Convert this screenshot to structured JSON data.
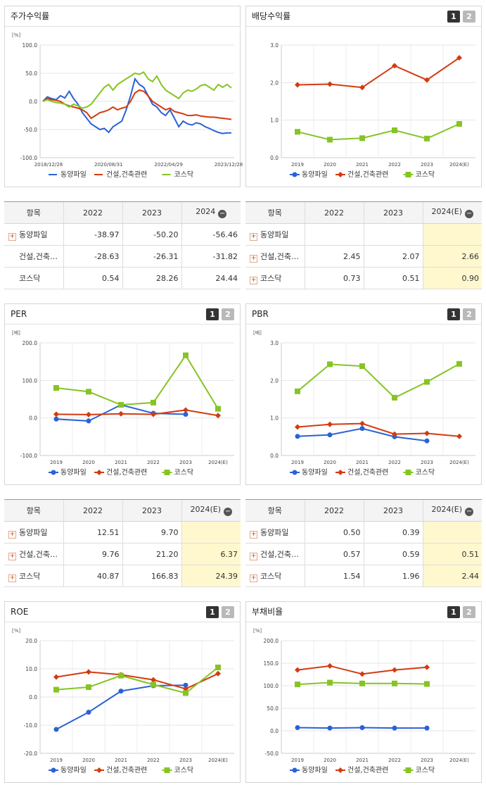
{
  "colors": {
    "series1": "#2a62d6",
    "series2": "#d33b10",
    "series3": "#86c424"
  },
  "legend": [
    "동양파일",
    "건설,건축관련",
    "코스닥"
  ],
  "panels": {
    "stock_return": {
      "title": "주가수익률",
      "unit": "[%]"
    },
    "dividend": {
      "title": "배당수익률",
      "unit": ""
    },
    "per": {
      "title": "PER",
      "unit": "[배]"
    },
    "pbr": {
      "title": "PBR",
      "unit": "[배]"
    },
    "roe": {
      "title": "ROE",
      "unit": "[%]"
    },
    "debt": {
      "title": "부채비율",
      "unit": "[%]"
    }
  },
  "buttons": {
    "b1": "1",
    "b2": "2"
  },
  "chart_data": [
    {
      "id": "stock_return",
      "type": "line",
      "title": "주가수익률",
      "ylabel": "[%]",
      "ylim": [
        -100,
        100
      ],
      "yticks": [
        "100.0",
        "50.0",
        "0.0",
        "-50.0",
        "-100.0"
      ],
      "xticks": [
        "2018/12/28",
        "2020/08/31",
        "2022/04/29",
        "2023/12/28"
      ],
      "series": [
        {
          "name": "동양파일",
          "values": [
            0,
            8,
            5,
            3,
            10,
            6,
            18,
            5,
            -5,
            -20,
            -30,
            -40,
            -45,
            -50,
            -48,
            -55,
            -45,
            -40,
            -35,
            -15,
            10,
            40,
            30,
            25,
            10,
            -5,
            -10,
            -20,
            -25,
            -15,
            -30,
            -45,
            -35,
            -40,
            -42,
            -38,
            -40,
            -45,
            -48,
            -52,
            -55,
            -57,
            -56,
            -56
          ]
        },
        {
          "name": "건설,건축관련",
          "values": [
            0,
            5,
            3,
            2,
            0,
            -5,
            -8,
            -10,
            -12,
            -15,
            -20,
            -30,
            -25,
            -20,
            -18,
            -15,
            -10,
            -15,
            -12,
            -10,
            0,
            15,
            20,
            18,
            10,
            0,
            -5,
            -10,
            -15,
            -12,
            -18,
            -20,
            -22,
            -25,
            -25,
            -24,
            -26,
            -27,
            -28,
            -28,
            -29,
            -30,
            -31,
            -32
          ]
        },
        {
          "name": "코스닥",
          "values": [
            0,
            3,
            0,
            -2,
            -3,
            -5,
            -10,
            -5,
            -8,
            -12,
            -10,
            -5,
            5,
            15,
            25,
            30,
            20,
            30,
            35,
            40,
            45,
            50,
            48,
            52,
            40,
            35,
            45,
            30,
            20,
            15,
            10,
            5,
            15,
            20,
            18,
            22,
            28,
            30,
            25,
            20,
            30,
            25,
            30,
            24
          ]
        }
      ]
    },
    {
      "id": "dividend",
      "type": "line",
      "title": "배당수익률",
      "ylim": [
        0,
        3
      ],
      "yticks": [
        "3.0",
        "2.0",
        "1.0",
        "0.0"
      ],
      "categories": [
        "2019",
        "2020",
        "2021",
        "2022",
        "2023",
        "2024(E)"
      ],
      "series": [
        {
          "name": "건설,건축관련",
          "values": [
            1.94,
            1.96,
            1.87,
            2.45,
            2.07,
            2.66
          ]
        },
        {
          "name": "코스닥",
          "values": [
            0.69,
            0.48,
            0.52,
            0.73,
            0.51,
            0.9
          ]
        }
      ]
    },
    {
      "id": "per",
      "type": "line",
      "title": "PER",
      "ylabel": "[배]",
      "ylim": [
        -100,
        200
      ],
      "yticks": [
        "200.0",
        "100.0",
        "0.0",
        "-100.0"
      ],
      "categories": [
        "2019",
        "2020",
        "2021",
        "2022",
        "2023",
        "2024(E)"
      ],
      "series": [
        {
          "name": "동양파일",
          "values": [
            -3,
            -8,
            35,
            12.51,
            9.7,
            null
          ]
        },
        {
          "name": "건설,건축관련",
          "values": [
            10,
            9,
            11,
            9.76,
            21.2,
            6.37
          ]
        },
        {
          "name": "코스닥",
          "values": [
            80,
            70,
            35,
            40.87,
            166.83,
            24.39
          ]
        }
      ]
    },
    {
      "id": "pbr",
      "type": "line",
      "title": "PBR",
      "ylabel": "[배]",
      "ylim": [
        0,
        3
      ],
      "yticks": [
        "3.0",
        "2.0",
        "1.0",
        "0.0"
      ],
      "categories": [
        "2019",
        "2020",
        "2021",
        "2022",
        "2023",
        "2024(E)"
      ],
      "series": [
        {
          "name": "동양파일",
          "values": [
            0.51,
            0.55,
            0.72,
            0.5,
            0.39,
            null
          ]
        },
        {
          "name": "건설,건축관련",
          "values": [
            0.76,
            0.83,
            0.85,
            0.57,
            0.59,
            0.51
          ]
        },
        {
          "name": "코스닥",
          "values": [
            1.71,
            2.43,
            2.38,
            1.54,
            1.96,
            2.44
          ]
        }
      ]
    },
    {
      "id": "roe",
      "type": "line",
      "title": "ROE",
      "ylabel": "[%]",
      "ylim": [
        -20,
        20
      ],
      "yticks": [
        "20.0",
        "10.0",
        "0.0",
        "-10.0",
        "-20.0"
      ],
      "categories": [
        "2019",
        "2020",
        "2021",
        "2022",
        "2023",
        "2024(E)"
      ],
      "series": [
        {
          "name": "동양파일",
          "values": [
            -11.5,
            -5.4,
            2.1,
            4.0,
            4.2,
            null
          ]
        },
        {
          "name": "건설,건축관련",
          "values": [
            7.1,
            8.9,
            7.9,
            6.1,
            2.9,
            8.3
          ]
        },
        {
          "name": "코스닥",
          "values": [
            2.6,
            3.5,
            7.6,
            4.4,
            1.4,
            10.5
          ]
        }
      ]
    },
    {
      "id": "debt",
      "type": "line",
      "title": "부채비율",
      "ylabel": "[%]",
      "ylim": [
        -50,
        200
      ],
      "yticks": [
        "200.0",
        "150.0",
        "100.0",
        "50.0",
        "0.0",
        "-50.0"
      ],
      "categories": [
        "2019",
        "2020",
        "2021",
        "2022",
        "2023",
        "2024(E)"
      ],
      "series": [
        {
          "name": "동양파일",
          "values": [
            7,
            6,
            7,
            6,
            6,
            null
          ]
        },
        {
          "name": "건설,건축관련",
          "values": [
            135,
            144,
            126,
            135,
            141,
            null
          ]
        },
        {
          "name": "코스닥",
          "values": [
            103,
            107,
            105,
            105,
            104,
            null
          ]
        }
      ]
    }
  ],
  "tables": {
    "stock_return": {
      "headers": [
        "항목",
        "2022",
        "2023",
        "2024"
      ],
      "rows": [
        {
          "name": "동양파일",
          "plus": true,
          "values": [
            "-38.97",
            "-50.20",
            "-56.46"
          ]
        },
        {
          "name": "건설,건축…",
          "plus": false,
          "values": [
            "-28.63",
            "-26.31",
            "-31.82"
          ]
        },
        {
          "name": "코스닥",
          "plus": false,
          "values": [
            "0.54",
            "28.26",
            "24.44"
          ]
        }
      ]
    },
    "dividend": {
      "headers": [
        "항목",
        "2022",
        "2023",
        "2024(E)"
      ],
      "rows": [
        {
          "name": "동양파일",
          "plus": true,
          "values": [
            "",
            "",
            ""
          ]
        },
        {
          "name": "건설,건축…",
          "plus": true,
          "values": [
            "2.45",
            "2.07",
            "2.66"
          ]
        },
        {
          "name": "코스닥",
          "plus": true,
          "values": [
            "0.73",
            "0.51",
            "0.90"
          ]
        }
      ]
    },
    "per": {
      "headers": [
        "항목",
        "2022",
        "2023",
        "2024(E)"
      ],
      "rows": [
        {
          "name": "동양파일",
          "plus": true,
          "values": [
            "12.51",
            "9.70",
            ""
          ]
        },
        {
          "name": "건설,건축…",
          "plus": true,
          "values": [
            "9.76",
            "21.20",
            "6.37"
          ]
        },
        {
          "name": "코스닥",
          "plus": true,
          "values": [
            "40.87",
            "166.83",
            "24.39"
          ]
        }
      ]
    },
    "pbr": {
      "headers": [
        "항목",
        "2022",
        "2023",
        "2024(E)"
      ],
      "rows": [
        {
          "name": "동양파일",
          "plus": true,
          "values": [
            "0.50",
            "0.39",
            ""
          ]
        },
        {
          "name": "건설,건축…",
          "plus": true,
          "values": [
            "0.57",
            "0.59",
            "0.51"
          ]
        },
        {
          "name": "코스닥",
          "plus": true,
          "values": [
            "1.54",
            "1.96",
            "2.44"
          ]
        }
      ]
    }
  }
}
